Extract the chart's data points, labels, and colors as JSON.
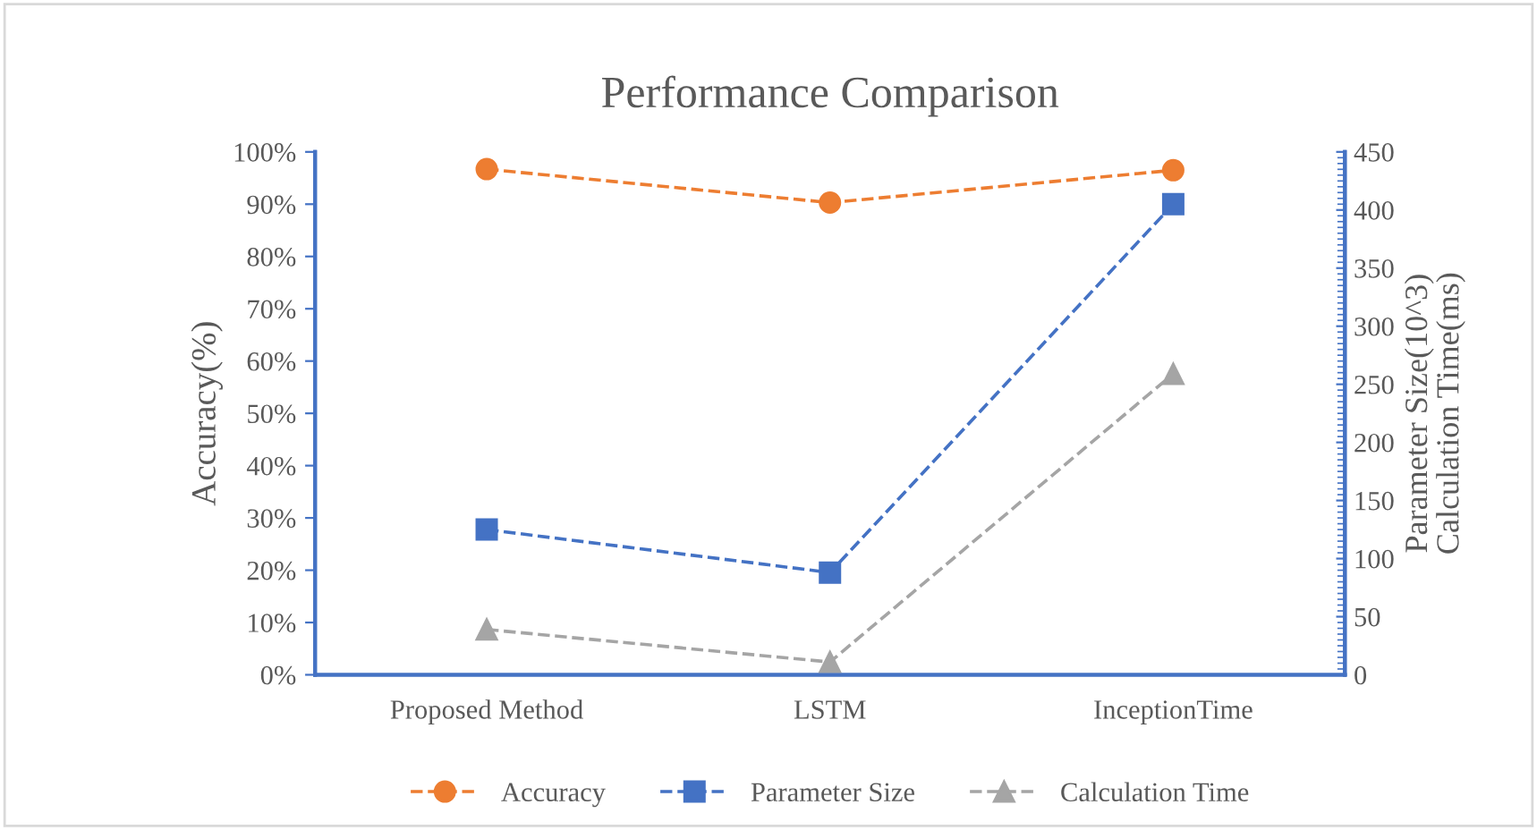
{
  "chart_data": {
    "type": "line",
    "title": "Performance Comparison",
    "ylabel": "Accuracy(%)",
    "y2label": "Parameter Size(10^3)\nCalculation Time(ms)",
    "categories": [
      "Proposed Method",
      "LSTM",
      "InceptionTime"
    ],
    "series": [
      {
        "name": "Accuracy",
        "color": "#ed7d31",
        "marker": "circle",
        "values": [
          96.7,
          90.3,
          96.5
        ]
      },
      {
        "name": "Parameter Size",
        "color": "#4472c4",
        "marker": "square",
        "axis": "y2",
        "values": [
          125,
          88,
          405
        ]
      },
      {
        "name": "Calculation Time",
        "color": "#a5a5a5",
        "marker": "triangle",
        "axis": "y2",
        "values": [
          39,
          11,
          259
        ]
      }
    ],
    "line_style": "dashed",
    "legend": "bottom",
    "grid": false,
    "ylim": [
      0,
      100
    ],
    "yticks": [
      {
        "value": 0,
        "label": "0%"
      },
      {
        "value": 10,
        "label": "10%"
      },
      {
        "value": 20,
        "label": "20%"
      },
      {
        "value": 30,
        "label": "30%"
      },
      {
        "value": 40,
        "label": "40%"
      },
      {
        "value": 50,
        "label": "50%"
      },
      {
        "value": 60,
        "label": "60%"
      },
      {
        "value": 70,
        "label": "70%"
      },
      {
        "value": 80,
        "label": "80%"
      },
      {
        "value": 90,
        "label": "90%"
      },
      {
        "value": 100,
        "label": "100%"
      }
    ],
    "y2lim": [
      0,
      450
    ],
    "y2ticks": [
      0,
      50,
      100,
      150,
      200,
      250,
      300,
      350,
      400,
      450
    ]
  }
}
